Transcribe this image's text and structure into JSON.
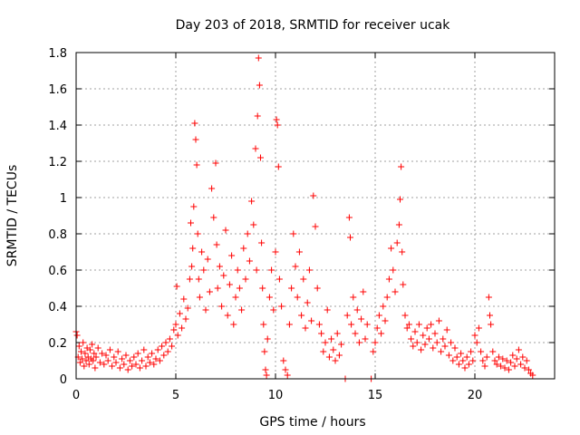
{
  "chart_data": {
    "type": "scatter",
    "title": "Day 203 of 2018, SRMTID for receiver ucak",
    "xlabel": "GPS time / hours",
    "ylabel": "SRMTID / TECUs",
    "xlim": [
      0,
      24
    ],
    "ylim": [
      0,
      1.8
    ],
    "x_ticks": [
      0,
      5,
      10,
      15,
      20
    ],
    "x_tick_labels": [
      "0",
      "5",
      "10",
      "15",
      "20"
    ],
    "y_ticks": [
      0,
      0.2,
      0.4,
      0.6,
      0.8,
      1,
      1.2,
      1.4,
      1.6,
      1.8
    ],
    "y_tick_labels": [
      "0",
      "0.2",
      "0.4",
      "0.6",
      "0.8",
      "1",
      "1.2",
      "1.4",
      "1.6",
      "1.8"
    ],
    "grid": true,
    "marker": "+",
    "marker_color": "#ff0000",
    "series": [
      {
        "name": "SRMTID",
        "points": [
          [
            0.0,
            0.26
          ],
          [
            0.05,
            0.24
          ],
          [
            0.1,
            0.12
          ],
          [
            0.15,
            0.18
          ],
          [
            0.2,
            0.09
          ],
          [
            0.25,
            0.15
          ],
          [
            0.3,
            0.11
          ],
          [
            0.35,
            0.2
          ],
          [
            0.4,
            0.07
          ],
          [
            0.45,
            0.14
          ],
          [
            0.5,
            0.1
          ],
          [
            0.55,
            0.17
          ],
          [
            0.6,
            0.12
          ],
          [
            0.65,
            0.08
          ],
          [
            0.7,
            0.16
          ],
          [
            0.75,
            0.11
          ],
          [
            0.8,
            0.19
          ],
          [
            0.85,
            0.1
          ],
          [
            0.9,
            0.14
          ],
          [
            0.95,
            0.06
          ],
          [
            1.0,
            0.12
          ],
          [
            1.1,
            0.17
          ],
          [
            1.2,
            0.09
          ],
          [
            1.3,
            0.14
          ],
          [
            1.4,
            0.08
          ],
          [
            1.5,
            0.13
          ],
          [
            1.6,
            0.1
          ],
          [
            1.7,
            0.16
          ],
          [
            1.8,
            0.07
          ],
          [
            1.9,
            0.12
          ],
          [
            2.0,
            0.09
          ],
          [
            2.1,
            0.15
          ],
          [
            2.2,
            0.06
          ],
          [
            2.3,
            0.11
          ],
          [
            2.4,
            0.08
          ],
          [
            2.5,
            0.13
          ],
          [
            2.6,
            0.05
          ],
          [
            2.7,
            0.1
          ],
          [
            2.8,
            0.07
          ],
          [
            2.9,
            0.12
          ],
          [
            3.0,
            0.08
          ],
          [
            3.1,
            0.14
          ],
          [
            3.2,
            0.06
          ],
          [
            3.3,
            0.1
          ],
          [
            3.4,
            0.16
          ],
          [
            3.5,
            0.07
          ],
          [
            3.6,
            0.12
          ],
          [
            3.7,
            0.09
          ],
          [
            3.8,
            0.14
          ],
          [
            3.9,
            0.08
          ],
          [
            4.0,
            0.11
          ],
          [
            4.1,
            0.16
          ],
          [
            4.2,
            0.1
          ],
          [
            4.3,
            0.18
          ],
          [
            4.4,
            0.13
          ],
          [
            4.5,
            0.2
          ],
          [
            4.6,
            0.15
          ],
          [
            4.7,
            0.22
          ],
          [
            4.8,
            0.18
          ],
          [
            4.9,
            0.27
          ],
          [
            5.0,
            0.3
          ],
          [
            5.05,
            0.51
          ],
          [
            5.1,
            0.24
          ],
          [
            5.2,
            0.36
          ],
          [
            5.3,
            0.28
          ],
          [
            5.4,
            0.44
          ],
          [
            5.5,
            0.33
          ],
          [
            5.6,
            0.39
          ],
          [
            5.7,
            0.55
          ],
          [
            5.75,
            0.86
          ],
          [
            5.8,
            0.62
          ],
          [
            5.85,
            0.72
          ],
          [
            5.9,
            0.95
          ],
          [
            5.95,
            1.41
          ],
          [
            6.0,
            1.32
          ],
          [
            6.05,
            1.18
          ],
          [
            6.1,
            0.8
          ],
          [
            6.15,
            0.55
          ],
          [
            6.2,
            0.45
          ],
          [
            6.3,
            0.7
          ],
          [
            6.4,
            0.6
          ],
          [
            6.5,
            0.38
          ],
          [
            6.6,
            0.66
          ],
          [
            6.7,
            0.48
          ],
          [
            6.8,
            1.05
          ],
          [
            6.9,
            0.89
          ],
          [
            7.0,
            1.19
          ],
          [
            7.05,
            0.74
          ],
          [
            7.1,
            0.5
          ],
          [
            7.2,
            0.62
          ],
          [
            7.3,
            0.4
          ],
          [
            7.4,
            0.57
          ],
          [
            7.5,
            0.82
          ],
          [
            7.6,
            0.35
          ],
          [
            7.7,
            0.52
          ],
          [
            7.8,
            0.68
          ],
          [
            7.9,
            0.3
          ],
          [
            8.0,
            0.45
          ],
          [
            8.1,
            0.6
          ],
          [
            8.2,
            0.5
          ],
          [
            8.3,
            0.38
          ],
          [
            8.4,
            0.72
          ],
          [
            8.5,
            0.55
          ],
          [
            8.6,
            0.8
          ],
          [
            8.7,
            0.65
          ],
          [
            8.8,
            0.98
          ],
          [
            8.9,
            0.85
          ],
          [
            9.0,
            1.27
          ],
          [
            9.05,
            0.6
          ],
          [
            9.1,
            1.45
          ],
          [
            9.15,
            1.77
          ],
          [
            9.2,
            1.62
          ],
          [
            9.25,
            1.22
          ],
          [
            9.3,
            0.75
          ],
          [
            9.35,
            0.5
          ],
          [
            9.4,
            0.3
          ],
          [
            9.45,
            0.15
          ],
          [
            9.5,
            0.05
          ],
          [
            9.55,
            0.02
          ],
          [
            9.6,
            0.22
          ],
          [
            9.7,
            0.45
          ],
          [
            9.8,
            0.6
          ],
          [
            9.9,
            0.38
          ],
          [
            10.0,
            0.7
          ],
          [
            10.05,
            1.43
          ],
          [
            10.1,
            1.4
          ],
          [
            10.15,
            1.17
          ],
          [
            10.2,
            0.55
          ],
          [
            10.3,
            0.4
          ],
          [
            10.4,
            0.1
          ],
          [
            10.5,
            0.05
          ],
          [
            10.6,
            0.02
          ],
          [
            10.7,
            0.3
          ],
          [
            10.8,
            0.5
          ],
          [
            10.9,
            0.8
          ],
          [
            11.0,
            0.62
          ],
          [
            11.1,
            0.45
          ],
          [
            11.2,
            0.7
          ],
          [
            11.3,
            0.35
          ],
          [
            11.4,
            0.55
          ],
          [
            11.5,
            0.28
          ],
          [
            11.6,
            0.42
          ],
          [
            11.7,
            0.6
          ],
          [
            11.8,
            0.32
          ],
          [
            11.9,
            1.01
          ],
          [
            12.0,
            0.84
          ],
          [
            12.1,
            0.5
          ],
          [
            12.2,
            0.3
          ],
          [
            12.3,
            0.25
          ],
          [
            12.4,
            0.15
          ],
          [
            12.5,
            0.2
          ],
          [
            12.6,
            0.38
          ],
          [
            12.7,
            0.12
          ],
          [
            12.8,
            0.22
          ],
          [
            12.9,
            0.16
          ],
          [
            13.0,
            0.1
          ],
          [
            13.1,
            0.25
          ],
          [
            13.2,
            0.13
          ],
          [
            13.3,
            0.19
          ],
          [
            13.5,
            0.0
          ],
          [
            13.6,
            0.35
          ],
          [
            13.7,
            0.89
          ],
          [
            13.75,
            0.78
          ],
          [
            13.8,
            0.3
          ],
          [
            13.9,
            0.45
          ],
          [
            14.0,
            0.25
          ],
          [
            14.1,
            0.38
          ],
          [
            14.2,
            0.2
          ],
          [
            14.3,
            0.33
          ],
          [
            14.4,
            0.48
          ],
          [
            14.5,
            0.22
          ],
          [
            14.6,
            0.3
          ],
          [
            14.8,
            0.0
          ],
          [
            14.9,
            0.15
          ],
          [
            15.0,
            0.2
          ],
          [
            15.1,
            0.28
          ],
          [
            15.2,
            0.35
          ],
          [
            15.3,
            0.25
          ],
          [
            15.4,
            0.4
          ],
          [
            15.5,
            0.32
          ],
          [
            15.6,
            0.45
          ],
          [
            15.7,
            0.55
          ],
          [
            15.8,
            0.72
          ],
          [
            15.9,
            0.6
          ],
          [
            16.0,
            0.48
          ],
          [
            16.1,
            0.75
          ],
          [
            16.2,
            0.85
          ],
          [
            16.25,
            0.99
          ],
          [
            16.3,
            1.17
          ],
          [
            16.35,
            0.7
          ],
          [
            16.4,
            0.52
          ],
          [
            16.5,
            0.35
          ],
          [
            16.6,
            0.28
          ],
          [
            16.7,
            0.3
          ],
          [
            16.8,
            0.22
          ],
          [
            16.9,
            0.18
          ],
          [
            17.0,
            0.26
          ],
          [
            17.1,
            0.2
          ],
          [
            17.2,
            0.3
          ],
          [
            17.3,
            0.16
          ],
          [
            17.4,
            0.24
          ],
          [
            17.5,
            0.19
          ],
          [
            17.6,
            0.28
          ],
          [
            17.7,
            0.22
          ],
          [
            17.8,
            0.3
          ],
          [
            17.9,
            0.17
          ],
          [
            18.0,
            0.25
          ],
          [
            18.1,
            0.2
          ],
          [
            18.2,
            0.32
          ],
          [
            18.3,
            0.15
          ],
          [
            18.4,
            0.22
          ],
          [
            18.5,
            0.18
          ],
          [
            18.6,
            0.27
          ],
          [
            18.7,
            0.13
          ],
          [
            18.8,
            0.2
          ],
          [
            18.9,
            0.1
          ],
          [
            19.0,
            0.17
          ],
          [
            19.1,
            0.12
          ],
          [
            19.2,
            0.08
          ],
          [
            19.3,
            0.14
          ],
          [
            19.4,
            0.1
          ],
          [
            19.5,
            0.06
          ],
          [
            19.6,
            0.12
          ],
          [
            19.7,
            0.08
          ],
          [
            19.8,
            0.15
          ],
          [
            19.9,
            0.1
          ],
          [
            20.0,
            0.24
          ],
          [
            20.1,
            0.2
          ],
          [
            20.2,
            0.28
          ],
          [
            20.3,
            0.15
          ],
          [
            20.4,
            0.1
          ],
          [
            20.5,
            0.07
          ],
          [
            20.6,
            0.12
          ],
          [
            20.7,
            0.45
          ],
          [
            20.75,
            0.35
          ],
          [
            20.8,
            0.3
          ],
          [
            20.9,
            0.15
          ],
          [
            21.0,
            0.1
          ],
          [
            21.1,
            0.08
          ],
          [
            21.2,
            0.12
          ],
          [
            21.3,
            0.07
          ],
          [
            21.4,
            0.11
          ],
          [
            21.5,
            0.06
          ],
          [
            21.6,
            0.1
          ],
          [
            21.7,
            0.05
          ],
          [
            21.8,
            0.09
          ],
          [
            21.9,
            0.13
          ],
          [
            22.0,
            0.07
          ],
          [
            22.1,
            0.11
          ],
          [
            22.2,
            0.16
          ],
          [
            22.3,
            0.08
          ],
          [
            22.4,
            0.12
          ],
          [
            22.5,
            0.06
          ],
          [
            22.6,
            0.1
          ],
          [
            22.7,
            0.05
          ],
          [
            22.8,
            0.03
          ],
          [
            22.9,
            0.02
          ]
        ]
      }
    ]
  }
}
